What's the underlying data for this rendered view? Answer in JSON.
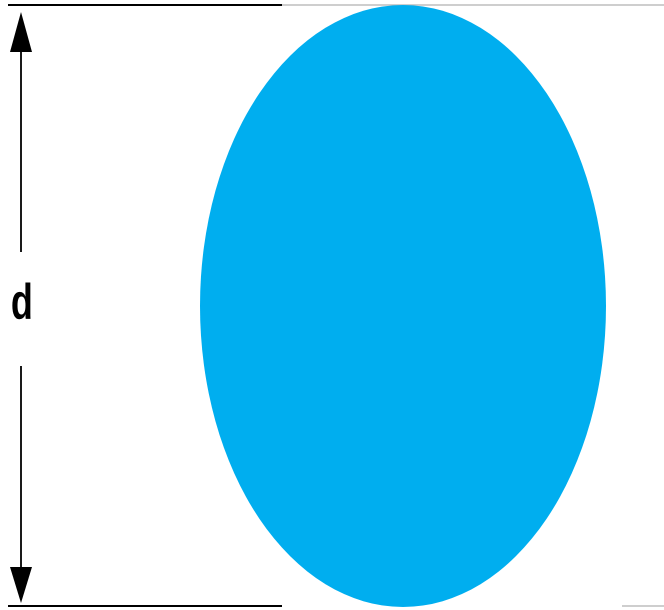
{
  "diagram": {
    "dimension_label": "d",
    "shape": "ellipse",
    "shape_color": "#00AEEF",
    "line_color": "#000000",
    "frame_color": "#BDBDBD"
  }
}
